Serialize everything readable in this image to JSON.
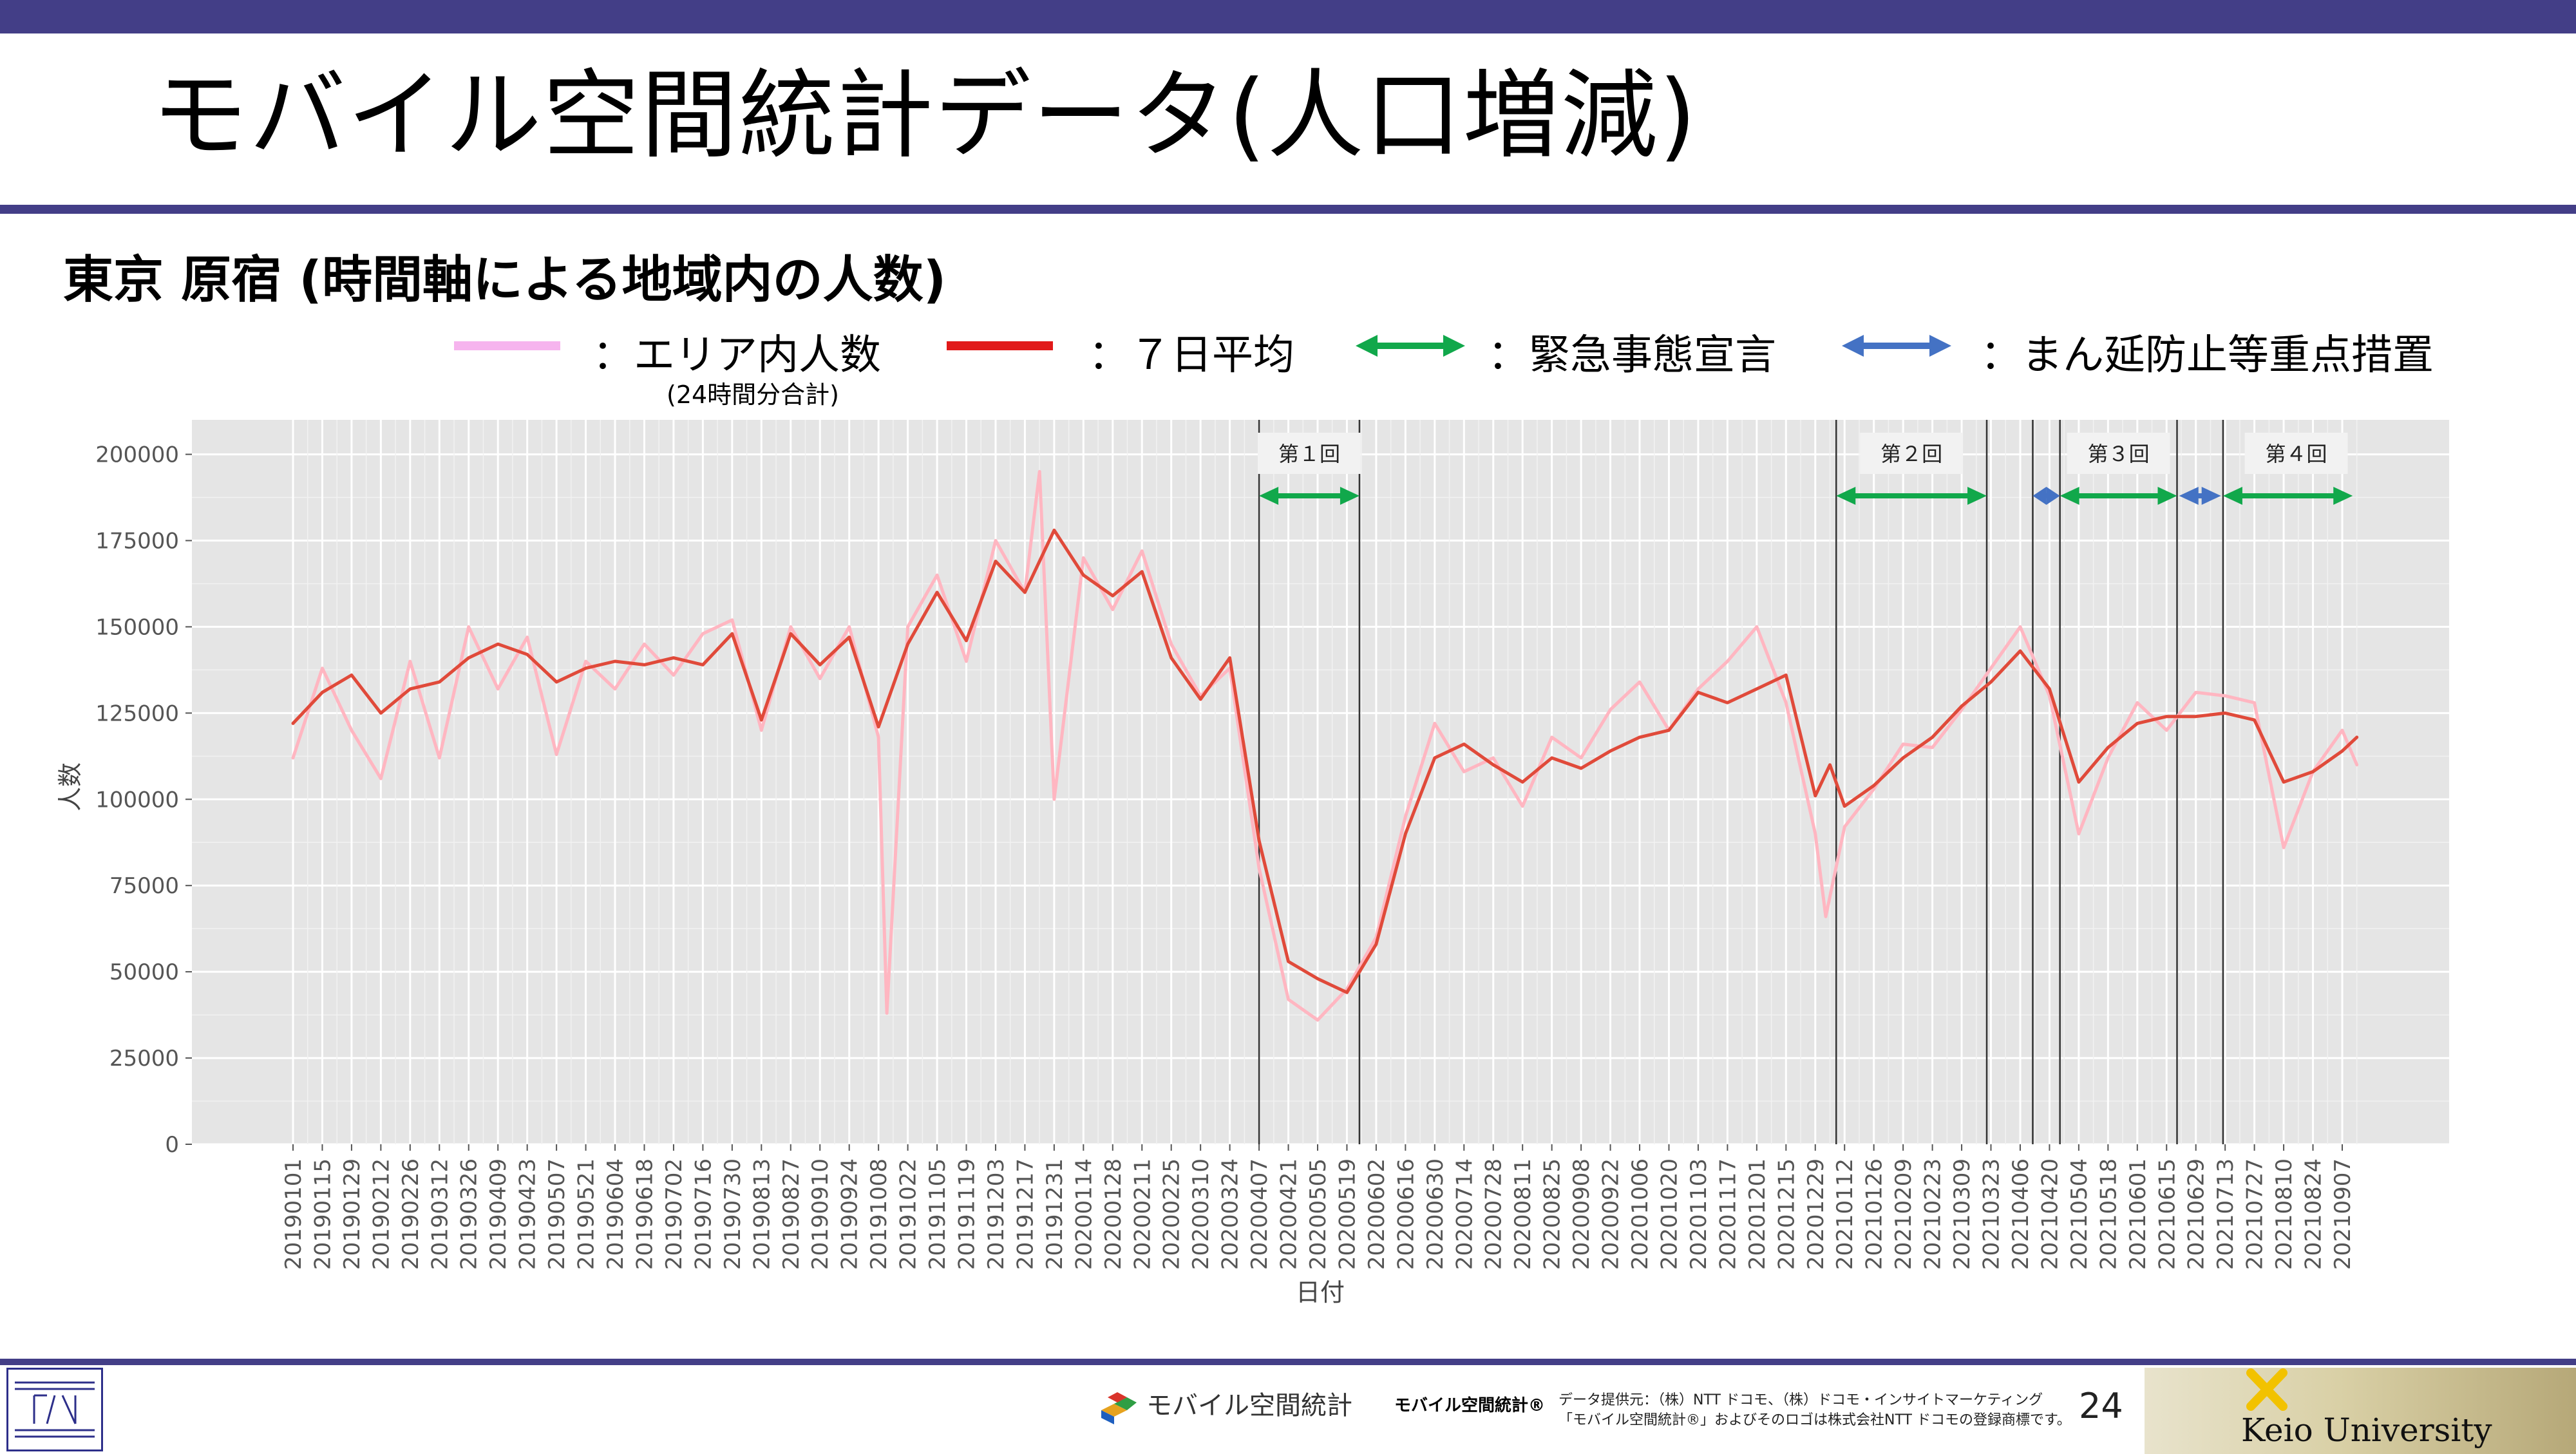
{
  "title": "モバイル空間統計データ(人口増減)",
  "subtitle": "東京 原宿 (時間軸による地域内の人数)",
  "legend": {
    "daily_label": "：エリア内人数",
    "daily_note": "(24時間分合計)",
    "avg_label": "：７日平均",
    "emergency_label": "：緊急事態宣言",
    "priority_label": "：まん延防止等重点措置"
  },
  "colors": {
    "header_bar": "#433e87",
    "daily": "#f6b4ee",
    "daily_plot": "#ffb6c1",
    "avg": "#e11a1a",
    "avg_plot": "#e04a3a",
    "emergency": "#11a84b",
    "priority": "#4472c4",
    "panel": "#e5e5e5"
  },
  "chart_data": {
    "type": "line",
    "xlabel": "日付",
    "ylabel": "人数",
    "ylim": [
      0,
      210000
    ],
    "yticks": [
      0,
      25000,
      50000,
      75000,
      100000,
      125000,
      150000,
      175000,
      200000
    ],
    "ytick_labels": [
      "0",
      "25000",
      "50000",
      "75000",
      "100000",
      "125000",
      "150000",
      "175000",
      "200000"
    ],
    "xlim": [
      "2019-01-01",
      "2021-09-19"
    ],
    "xtick_labels": [
      "20190101",
      "20190115",
      "20190129",
      "20190212",
      "20190226",
      "20190312",
      "20190326",
      "20190409",
      "20190423",
      "20190507",
      "20190521",
      "20190604",
      "20190618",
      "20190702",
      "20190716",
      "20190730",
      "20190813",
      "20190827",
      "20190910",
      "20190924",
      "20191008",
      "20191022",
      "20191105",
      "20191119",
      "20191203",
      "20191217",
      "20191231",
      "20200114",
      "20200128",
      "20200211",
      "20200225",
      "20200310",
      "20200324",
      "20200407",
      "20200421",
      "20200505",
      "20200519",
      "20200602",
      "20200616",
      "20200630",
      "20200714",
      "20200728",
      "20200811",
      "20200825",
      "20200908",
      "20200922",
      "20201006",
      "20201020",
      "20201103",
      "20201117",
      "20201201",
      "20201215",
      "20201229",
      "20210112",
      "20210126",
      "20210209",
      "20210223",
      "20210309",
      "20210323",
      "20210406",
      "20210420",
      "20210504",
      "20210518",
      "20210601",
      "20210615",
      "20210629",
      "20210713",
      "20210727",
      "20210810",
      "20210824",
      "20210907"
    ],
    "series": [
      {
        "name": "エリア内人数",
        "x": [
          "2019-01-01",
          "2019-01-15",
          "2019-01-29",
          "2019-02-12",
          "2019-02-26",
          "2019-03-12",
          "2019-03-26",
          "2019-04-09",
          "2019-04-23",
          "2019-05-07",
          "2019-05-21",
          "2019-06-04",
          "2019-06-18",
          "2019-07-02",
          "2019-07-16",
          "2019-07-30",
          "2019-08-13",
          "2019-08-27",
          "2019-09-10",
          "2019-09-24",
          "2019-10-08",
          "2019-10-12",
          "2019-10-22",
          "2019-11-05",
          "2019-11-19",
          "2019-12-03",
          "2019-12-17",
          "2019-12-24",
          "2019-12-31",
          "2020-01-14",
          "2020-01-28",
          "2020-02-11",
          "2020-02-25",
          "2020-03-10",
          "2020-03-24",
          "2020-04-07",
          "2020-04-21",
          "2020-05-05",
          "2020-05-19",
          "2020-06-02",
          "2020-06-16",
          "2020-06-30",
          "2020-07-14",
          "2020-07-28",
          "2020-08-11",
          "2020-08-25",
          "2020-09-08",
          "2020-09-22",
          "2020-10-06",
          "2020-10-20",
          "2020-11-03",
          "2020-11-17",
          "2020-12-01",
          "2020-12-15",
          "2020-12-29",
          "2021-01-03",
          "2021-01-12",
          "2021-01-26",
          "2021-02-09",
          "2021-02-23",
          "2021-03-09",
          "2021-03-23",
          "2021-04-06",
          "2021-04-20",
          "2021-05-04",
          "2021-05-18",
          "2021-06-01",
          "2021-06-15",
          "2021-06-29",
          "2021-07-13",
          "2021-07-27",
          "2021-08-10",
          "2021-08-24",
          "2021-09-07",
          "2021-09-14"
        ],
        "values": [
          112000,
          138000,
          120000,
          106000,
          140000,
          112000,
          150000,
          132000,
          147000,
          113000,
          140000,
          132000,
          145000,
          136000,
          148000,
          152000,
          120000,
          150000,
          135000,
          150000,
          118000,
          38000,
          150000,
          165000,
          140000,
          175000,
          160000,
          195000,
          100000,
          170000,
          155000,
          172000,
          145000,
          130000,
          138000,
          80000,
          42000,
          36000,
          45000,
          60000,
          95000,
          122000,
          108000,
          112000,
          98000,
          118000,
          112000,
          126000,
          134000,
          120000,
          132000,
          140000,
          150000,
          128000,
          90000,
          66000,
          92000,
          103000,
          116000,
          115000,
          126000,
          138000,
          150000,
          130000,
          90000,
          112000,
          128000,
          120000,
          131000,
          130000,
          128000,
          86000,
          108000,
          120000,
          110000
        ]
      },
      {
        "name": "７日平均",
        "x": [
          "2019-01-01",
          "2019-01-15",
          "2019-01-29",
          "2019-02-12",
          "2019-02-26",
          "2019-03-12",
          "2019-03-26",
          "2019-04-09",
          "2019-04-23",
          "2019-05-07",
          "2019-05-21",
          "2019-06-04",
          "2019-06-18",
          "2019-07-02",
          "2019-07-16",
          "2019-07-30",
          "2019-08-13",
          "2019-08-27",
          "2019-09-10",
          "2019-09-24",
          "2019-10-08",
          "2019-10-22",
          "2019-11-05",
          "2019-11-19",
          "2019-12-03",
          "2019-12-17",
          "2019-12-31",
          "2020-01-14",
          "2020-01-28",
          "2020-02-11",
          "2020-02-25",
          "2020-03-10",
          "2020-03-24",
          "2020-04-07",
          "2020-04-21",
          "2020-05-05",
          "2020-05-19",
          "2020-06-02",
          "2020-06-16",
          "2020-06-30",
          "2020-07-14",
          "2020-07-28",
          "2020-08-11",
          "2020-08-25",
          "2020-09-08",
          "2020-09-22",
          "2020-10-06",
          "2020-10-20",
          "2020-11-03",
          "2020-11-17",
          "2020-12-01",
          "2020-12-15",
          "2020-12-29",
          "2021-01-05",
          "2021-01-12",
          "2021-01-26",
          "2021-02-09",
          "2021-02-23",
          "2021-03-09",
          "2021-03-23",
          "2021-04-06",
          "2021-04-20",
          "2021-05-04",
          "2021-05-18",
          "2021-06-01",
          "2021-06-15",
          "2021-06-29",
          "2021-07-13",
          "2021-07-27",
          "2021-08-10",
          "2021-08-24",
          "2021-09-07",
          "2021-09-14"
        ],
        "values": [
          122000,
          131000,
          136000,
          125000,
          132000,
          134000,
          141000,
          145000,
          142000,
          134000,
          138000,
          140000,
          139000,
          141000,
          139000,
          148000,
          123000,
          148000,
          139000,
          147000,
          121000,
          145000,
          160000,
          146000,
          169000,
          160000,
          178000,
          165000,
          159000,
          166000,
          141000,
          129000,
          141000,
          88000,
          53000,
          48000,
          44000,
          58000,
          90000,
          112000,
          116000,
          110000,
          105000,
          112000,
          109000,
          114000,
          118000,
          120000,
          131000,
          128000,
          132000,
          136000,
          101000,
          110000,
          98000,
          104000,
          112000,
          118000,
          127000,
          134000,
          143000,
          132000,
          105000,
          115000,
          122000,
          124000,
          124000,
          125000,
          123000,
          105000,
          108000,
          114000,
          118000
        ]
      }
    ],
    "vertical_lines": [
      "2020-04-07",
      "2020-05-25",
      "2021-01-08",
      "2021-03-21",
      "2021-04-12",
      "2021-04-25",
      "2021-06-20",
      "2021-07-12"
    ],
    "periods": [
      {
        "label": "第１回",
        "type": "emergency",
        "start": "2020-04-07",
        "end": "2020-05-25"
      },
      {
        "label": "第２回",
        "type": "emergency",
        "start": "2021-01-08",
        "end": "2021-03-21"
      },
      {
        "type": "priority",
        "start": "2021-04-12",
        "end": "2021-04-25"
      },
      {
        "label": "第３回",
        "type": "emergency",
        "start": "2021-04-25",
        "end": "2021-06-20"
      },
      {
        "type": "priority",
        "start": "2021-06-21",
        "end": "2021-07-11"
      },
      {
        "label": "第４回",
        "type": "emergency",
        "start": "2021-07-12",
        "end": "2021-09-12"
      }
    ]
  },
  "footer": {
    "mobile_logo_text": "モバイル空間統計",
    "brand_text": "モバイル空間統計®",
    "credit_line1": "データ提供元：（株）NTT ドコモ、（株）ドコモ・インサイトマーケティング",
    "credit_line2": "「モバイル空間統計®」およびそのロゴは株式会社NTT ドコモの登録商標です。",
    "page_number": "24",
    "university": "Keio University"
  }
}
